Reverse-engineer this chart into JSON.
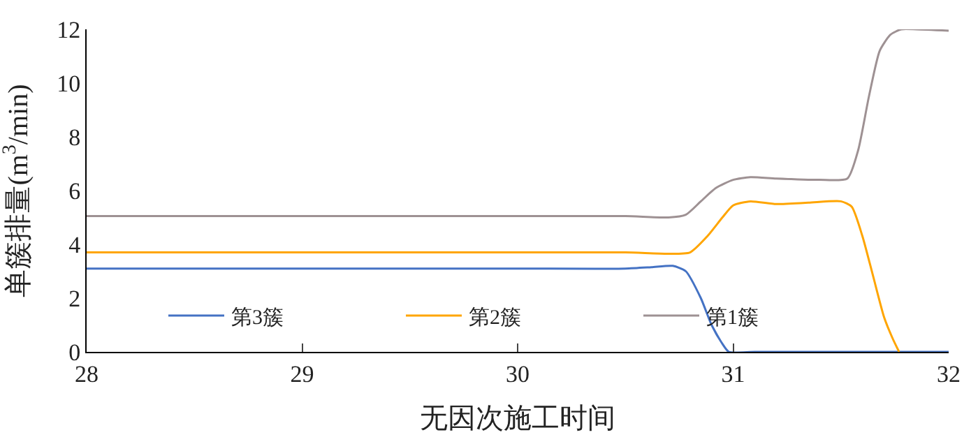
{
  "chart_data": {
    "type": "line",
    "xlabel": "无因次施工时间",
    "ylabel": "单簇排量(m$^{3}$/min)",
    "xlim": [
      28,
      32
    ],
    "xticks": [
      28,
      29,
      30,
      31,
      32
    ],
    "ylim": [
      0,
      12
    ],
    "yticks": [
      0,
      2,
      4,
      6,
      8,
      10,
      12
    ],
    "legend": "bottom",
    "marker": "none",
    "line_style": "solid",
    "series": [
      {
        "name": "第3簇",
        "color": "#4472c4",
        "x": [
          28,
          29,
          30,
          30.5,
          30.62,
          30.72,
          30.78,
          30.85,
          30.9,
          30.95,
          30.98,
          31.1,
          31.5,
          32
        ],
        "values": [
          3.1,
          3.1,
          3.1,
          3.1,
          3.15,
          3.2,
          3.0,
          2.0,
          1.0,
          0.3,
          0,
          0,
          0,
          0
        ]
      },
      {
        "name": "第2簇",
        "color": "#ffa500",
        "x": [
          28,
          29,
          30,
          30.5,
          30.7,
          30.8,
          30.88,
          30.95,
          31.0,
          31.08,
          31.2,
          31.35,
          31.5,
          31.55,
          31.6,
          31.65,
          31.7,
          31.74,
          31.77
        ],
        "values": [
          3.7,
          3.7,
          3.7,
          3.7,
          3.65,
          3.7,
          4.3,
          5.0,
          5.45,
          5.6,
          5.5,
          5.55,
          5.6,
          5.4,
          4.3,
          2.8,
          1.3,
          0.5,
          0
        ]
      },
      {
        "name": "第1簇",
        "color": "#9e9193",
        "x": [
          28,
          29,
          30,
          30.5,
          30.7,
          30.78,
          30.85,
          30.92,
          31.0,
          31.08,
          31.2,
          31.4,
          31.53,
          31.58,
          31.63,
          31.68,
          31.73,
          31.78,
          31.85,
          32
        ],
        "values": [
          5.05,
          5.05,
          5.05,
          5.05,
          5.0,
          5.1,
          5.6,
          6.1,
          6.4,
          6.5,
          6.45,
          6.4,
          6.45,
          7.5,
          9.5,
          11.2,
          11.8,
          12.0,
          12.0,
          11.95
        ]
      }
    ]
  }
}
